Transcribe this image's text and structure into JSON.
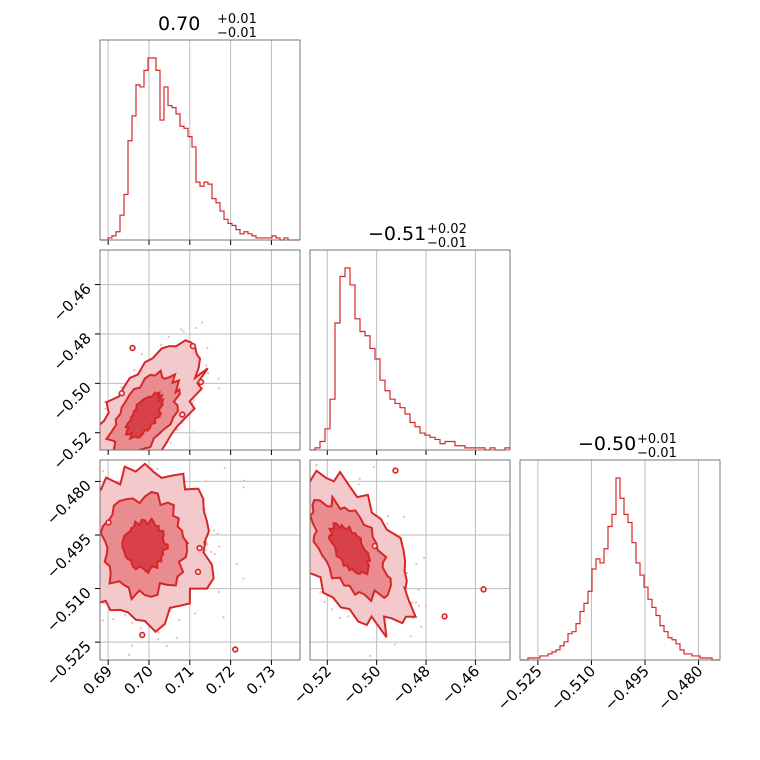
{
  "chart_data": {
    "type": "corner",
    "color": "#d62728",
    "parameters": [
      {
        "median": "0.70",
        "plus": "+0.01",
        "minus": "−0.01",
        "range": [
          0.688,
          0.737
        ],
        "ticks": [
          0.69,
          0.7,
          0.71,
          0.72,
          0.73
        ],
        "tick_labels": [
          "0.69",
          "0.70",
          "0.71",
          "0.72",
          "0.73"
        ]
      },
      {
        "median": "−0.51",
        "plus": "+0.02",
        "minus": "−0.01",
        "range": [
          -0.527,
          -0.446
        ],
        "ticks": [
          -0.52,
          -0.5,
          -0.48,
          -0.46
        ],
        "tick_labels": [
          "−0.52",
          "−0.50",
          "−0.48",
          "−0.46"
        ]
      },
      {
        "median": "−0.50",
        "plus": "+0.01",
        "minus": "−0.01",
        "range": [
          -0.53,
          -0.474
        ],
        "ticks": [
          -0.525,
          -0.51,
          -0.495,
          -0.48
        ],
        "tick_labels": [
          "−0.525",
          "−0.510",
          "−0.495",
          "−0.480"
        ]
      }
    ],
    "histograms": [
      {
        "param": 0,
        "bins": [
          0.688,
          0.737
        ],
        "counts": [
          0,
          0,
          1,
          2,
          4,
          12,
          22,
          48,
          60,
          75,
          74,
          82,
          88,
          88,
          82,
          58,
          74,
          65,
          64,
          61,
          55,
          54,
          50,
          45,
          28,
          26,
          28,
          27,
          20,
          18,
          14,
          10,
          8,
          7,
          5,
          3,
          4,
          3,
          2,
          1,
          1,
          1,
          1,
          2,
          1,
          0,
          1,
          0,
          0,
          0
        ]
      },
      {
        "param": 1,
        "bins": [
          -0.527,
          -0.446
        ],
        "counts": [
          0,
          1,
          4,
          10,
          24,
          60,
          82,
          86,
          78,
          62,
          56,
          54,
          48,
          43,
          33,
          28,
          24,
          22,
          20,
          17,
          13,
          11,
          8,
          7,
          6,
          5,
          3,
          4,
          4,
          2,
          2,
          1,
          1,
          1,
          1,
          0,
          1,
          0,
          0,
          1
        ]
      },
      {
        "param": 2,
        "bins": [
          -0.53,
          -0.474
        ],
        "counts": [
          0,
          0,
          1,
          1,
          1,
          2,
          2,
          3,
          4,
          5,
          7,
          9,
          13,
          14,
          18,
          24,
          28,
          34,
          45,
          50,
          48,
          55,
          66,
          72,
          90,
          80,
          72,
          68,
          58,
          48,
          42,
          36,
          30,
          26,
          22,
          17,
          14,
          11,
          10,
          8,
          5,
          3,
          3,
          2,
          2,
          1,
          1,
          1,
          0,
          0
        ]
      }
    ],
    "pairs": [
      {
        "x_param": 0,
        "y_param": 1,
        "center": [
          0.699,
          -0.513
        ],
        "sigma": [
          0.005,
          0.01
        ],
        "rho": 0.62
      },
      {
        "x_param": 0,
        "y_param": 2,
        "center": [
          0.699,
          -0.498
        ],
        "sigma": [
          0.006,
          0.008
        ],
        "rho": 0.05
      },
      {
        "x_param": 1,
        "y_param": 2,
        "center": [
          -0.511,
          -0.499
        ],
        "sigma": [
          0.009,
          0.008
        ],
        "rho": -0.55
      }
    ]
  }
}
